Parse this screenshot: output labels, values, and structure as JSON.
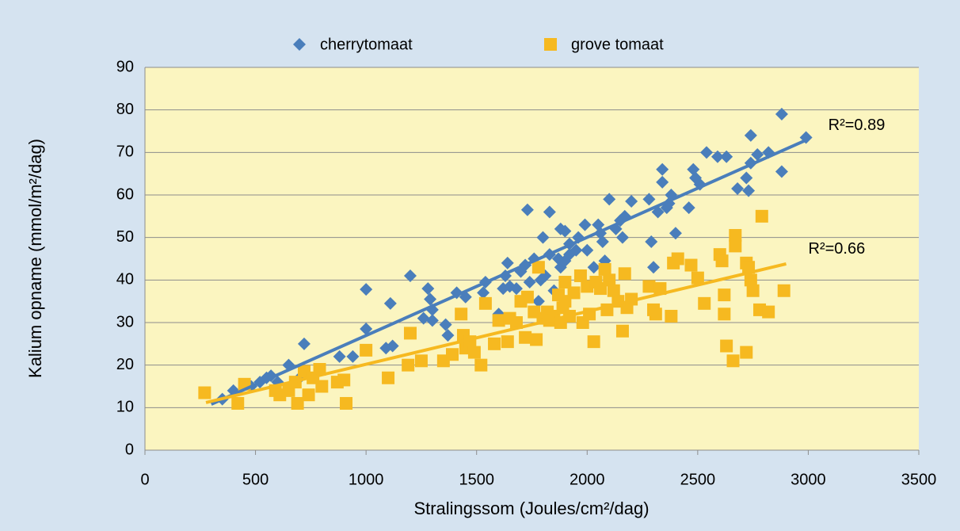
{
  "chart_data": {
    "type": "scatter",
    "x_label": "Stralingssom (Joules/cm²/dag)",
    "y_label": "Kalium opname (mmol/m²/dag)",
    "xlim": [
      0,
      3500
    ],
    "xticks": [
      0,
      500,
      1000,
      1500,
      2000,
      2500,
      3000,
      3500
    ],
    "ylim": [
      0,
      90
    ],
    "yticks": [
      0,
      10,
      20,
      30,
      40,
      50,
      60,
      70,
      80,
      90
    ],
    "grid": true,
    "legend": "top",
    "series": [
      {
        "name": "cherrytomaat",
        "color": "#4a7ebb",
        "marker": "diamond",
        "x": [
          350,
          400,
          480,
          520,
          550,
          570,
          600,
          650,
          700,
          720,
          880,
          940,
          1000,
          1000,
          1090,
          1110,
          1120,
          1200,
          1260,
          1280,
          1290,
          1300,
          1300,
          1360,
          1370,
          1410,
          1450,
          1530,
          1540,
          1600,
          1620,
          1630,
          1640,
          1650,
          1680,
          1700,
          1720,
          1730,
          1740,
          1760,
          1780,
          1790,
          1800,
          1810,
          1830,
          1830,
          1850,
          1870,
          1880,
          1880,
          1900,
          1900,
          1920,
          1920,
          1950,
          1960,
          1990,
          2000,
          2030,
          2050,
          2060,
          2070,
          2080,
          2100,
          2130,
          2150,
          2160,
          2170,
          2200,
          2280,
          2290,
          2300,
          2320,
          2340,
          2340,
          2360,
          2370,
          2380,
          2400,
          2460,
          2480,
          2490,
          2510,
          2540,
          2590,
          2630,
          2680,
          2720,
          2730,
          2740,
          2740,
          2770,
          2820,
          2880,
          2880,
          2990
        ],
        "values": [
          12,
          14,
          15,
          16,
          17,
          17.5,
          16,
          20,
          17,
          25,
          22,
          22,
          28.5,
          37.8,
          24,
          34.5,
          24.5,
          41,
          31,
          38,
          35.5,
          33,
          30.5,
          29.5,
          27,
          37,
          36,
          37,
          39.5,
          32,
          38,
          41,
          44,
          38.5,
          38,
          42,
          43.5,
          56.5,
          39.5,
          45,
          35,
          40,
          50,
          41,
          56,
          46,
          37.5,
          45,
          43,
          52,
          44.5,
          51.5,
          46,
          48.5,
          47,
          50,
          53,
          47,
          43,
          53,
          51,
          49,
          44.5,
          59,
          52,
          54,
          50,
          55,
          58.5,
          59,
          49,
          43,
          56,
          66,
          63,
          57,
          58,
          60,
          51,
          57,
          66,
          64,
          62.5,
          70,
          69,
          69,
          61.5,
          64,
          61,
          74,
          67.5,
          69.5,
          70,
          79,
          65.5,
          73.5
        ],
        "trend": {
          "x": [
            300,
            2990
          ],
          "y": [
            10.8,
            72.9
          ]
        }
      },
      {
        "name": "grove tomaat",
        "color": "#f6b920",
        "marker": "square",
        "x": [
          270,
          420,
          450,
          590,
          610,
          650,
          680,
          690,
          720,
          740,
          760,
          790,
          800,
          870,
          900,
          910,
          1000,
          1100,
          1190,
          1200,
          1250,
          1350,
          1390,
          1430,
          1440,
          1450,
          1470,
          1490,
          1520,
          1540,
          1580,
          1600,
          1640,
          1650,
          1680,
          1700,
          1720,
          1730,
          1760,
          1770,
          1780,
          1800,
          1820,
          1830,
          1850,
          1870,
          1880,
          1890,
          1900,
          1900,
          1920,
          1940,
          1970,
          1980,
          2000,
          2010,
          2030,
          2040,
          2060,
          2080,
          2090,
          2100,
          2120,
          2140,
          2160,
          2170,
          2180,
          2200,
          2280,
          2300,
          2310,
          2330,
          2380,
          2390,
          2410,
          2470,
          2500,
          2530,
          2600,
          2610,
          2620,
          2620,
          2630,
          2660,
          2670,
          2670,
          2720,
          2720,
          2730,
          2740,
          2750,
          2780,
          2790,
          2820,
          2890
        ],
        "values": [
          13.5,
          11,
          15.5,
          14,
          13,
          14,
          16,
          11,
          18.5,
          13,
          17,
          19,
          15,
          16,
          16.5,
          11,
          23.5,
          17,
          20,
          27.5,
          21,
          21,
          22.5,
          32,
          27,
          24,
          25.5,
          23,
          20,
          34.5,
          25,
          30.5,
          25.5,
          31,
          30,
          35,
          26.5,
          36,
          32.5,
          26,
          43,
          31,
          32.5,
          30.5,
          31.5,
          36.5,
          30,
          33.5,
          39.5,
          35,
          31.5,
          37,
          41,
          30,
          38.5,
          32,
          25.5,
          39.5,
          38,
          42.5,
          33,
          40,
          37.5,
          35,
          28,
          41.5,
          33.5,
          35.5,
          38.5,
          33,
          32,
          38,
          31.5,
          44,
          45,
          43.5,
          40.5,
          34.5,
          46,
          44.5,
          32,
          36.5,
          24.5,
          21,
          48,
          50.5,
          23,
          44,
          43,
          40,
          37.5,
          33,
          55,
          32.5,
          37.5
        ],
        "trend": {
          "x": [
            276,
            2900
          ],
          "y": [
            11.2,
            43.8
          ]
        }
      }
    ],
    "annotations": [
      "R²=0.89",
      "R²=0.66"
    ]
  }
}
